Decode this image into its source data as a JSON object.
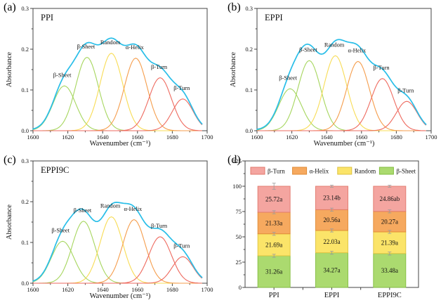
{
  "colors": {
    "axis": "#444444",
    "envelope": "#29bee8",
    "beta_sheet": "#a6d65e",
    "random": "#f8dc55",
    "alpha_helix": "#f59d4c",
    "beta_turn": "#ee6a5f",
    "bar_fill": {
      "beta_turn": "#f4a5a0",
      "alpha_helix": "#f6a95f",
      "random": "#fbe469",
      "beta_sheet": "#abda6f"
    },
    "bar_edge": {
      "beta_turn": "#e2786b",
      "alpha_helix": "#e08a33",
      "random": "#dcc23f",
      "beta_sheet": "#82bc3f"
    },
    "value_label": "#8a3220",
    "error_bar": "#9a9a9a"
  },
  "chart_data": [
    {
      "type": "line",
      "tag": "(a)",
      "title": "PPI",
      "xlabel": "Wavenumber (cm⁻¹)",
      "ylabel": "Absorbance",
      "xlim": [
        1600,
        1700
      ],
      "ylim": [
        0,
        0.3
      ],
      "xticks": [
        1600,
        1620,
        1640,
        1660,
        1680,
        1700
      ],
      "yticks": [
        0.0,
        0.1,
        0.2,
        0.3
      ],
      "envelope": "sum-of-peaks",
      "envelope_legend": "original spectrum (cyan)",
      "peaks": [
        {
          "label": "β-Sheet",
          "center": 1618,
          "height": 0.11,
          "sigma": 6.5,
          "color": "beta_sheet"
        },
        {
          "label": "β-Sheet",
          "center": 1631,
          "height": 0.18,
          "sigma": 6.5,
          "color": "beta_sheet"
        },
        {
          "label": "Random",
          "center": 1645,
          "height": 0.19,
          "sigma": 6.5,
          "color": "random"
        },
        {
          "label": "α-Helix",
          "center": 1659,
          "height": 0.178,
          "sigma": 6.5,
          "color": "alpha_helix"
        },
        {
          "label": "β-Turn",
          "center": 1673,
          "height": 0.13,
          "sigma": 6.5,
          "color": "beta_turn"
        },
        {
          "label": "β-Turn",
          "center": 1686,
          "height": 0.078,
          "sigma": 6.0,
          "color": "beta_turn"
        }
      ]
    },
    {
      "type": "line",
      "tag": "(b)",
      "title": "EPPI",
      "xlabel": "Wavenumber (cm⁻¹)",
      "ylabel": "Absorbance",
      "xlim": [
        1600,
        1700
      ],
      "ylim": [
        0,
        0.3
      ],
      "xticks": [
        1600,
        1620,
        1640,
        1660,
        1680,
        1700
      ],
      "yticks": [
        0.0,
        0.1,
        0.2,
        0.3
      ],
      "envelope": "sum-of-peaks",
      "peaks": [
        {
          "label": "β-Sheet",
          "center": 1619,
          "height": 0.103,
          "sigma": 6.5,
          "color": "beta_sheet"
        },
        {
          "label": "β-Sheet",
          "center": 1630,
          "height": 0.172,
          "sigma": 6.5,
          "color": "beta_sheet"
        },
        {
          "label": "Random",
          "center": 1645,
          "height": 0.184,
          "sigma": 6.5,
          "color": "random"
        },
        {
          "label": "α-Helix",
          "center": 1658,
          "height": 0.17,
          "sigma": 6.5,
          "color": "alpha_helix"
        },
        {
          "label": "β-Turn",
          "center": 1672,
          "height": 0.128,
          "sigma": 6.5,
          "color": "beta_turn"
        },
        {
          "label": "β-Turn",
          "center": 1686,
          "height": 0.072,
          "sigma": 6.0,
          "color": "beta_turn"
        }
      ]
    },
    {
      "type": "line",
      "tag": "(c)",
      "title": "EPPI9C",
      "xlabel": "Wavenumber (cm⁻¹)",
      "ylabel": "Absorbance",
      "xlim": [
        1600,
        1700
      ],
      "ylim": [
        0,
        0.3
      ],
      "xticks": [
        1600,
        1620,
        1640,
        1660,
        1680,
        1700
      ],
      "yticks": [
        0.0,
        0.1,
        0.2,
        0.3
      ],
      "envelope": "sum-of-peaks",
      "peaks": [
        {
          "label": "β-Sheet",
          "center": 1617,
          "height": 0.103,
          "sigma": 6.5,
          "color": "beta_sheet"
        },
        {
          "label": "β-Sheet",
          "center": 1629,
          "height": 0.152,
          "sigma": 6.5,
          "color": "beta_sheet"
        },
        {
          "label": "Random",
          "center": 1645,
          "height": 0.163,
          "sigma": 6.5,
          "color": "random"
        },
        {
          "label": "α-Helix",
          "center": 1658,
          "height": 0.156,
          "sigma": 6.5,
          "color": "alpha_helix"
        },
        {
          "label": "β-Turn",
          "center": 1673,
          "height": 0.114,
          "sigma": 6.5,
          "color": "beta_turn"
        },
        {
          "label": "β-Turn",
          "center": 1686,
          "height": 0.065,
          "sigma": 6.0,
          "color": "beta_turn"
        }
      ]
    },
    {
      "type": "bar",
      "tag": "(d)",
      "stacked": true,
      "categories": [
        "PPI",
        "EPPI",
        "EPPI9C"
      ],
      "ylim": [
        0,
        125
      ],
      "yticks": [
        0,
        25,
        50,
        75,
        100,
        125
      ],
      "legend": [
        {
          "label": "β-Turn",
          "color": "beta_turn"
        },
        {
          "label": "α-Helix",
          "color": "alpha_helix"
        },
        {
          "label": "Random",
          "color": "random"
        },
        {
          "label": "β-Sheet",
          "color": "beta_sheet"
        }
      ],
      "series": [
        {
          "name": "β-Sheet",
          "color": "beta_sheet",
          "values": [
            31.26,
            34.27,
            33.48
          ],
          "labels": [
            "31.26a",
            "34.27a",
            "33.48a"
          ]
        },
        {
          "name": "Random",
          "color": "random",
          "values": [
            21.69,
            22.03,
            21.39
          ],
          "labels": [
            "21.69a",
            "22.03a",
            "21.39a"
          ]
        },
        {
          "name": "α-Helix",
          "color": "alpha_helix",
          "values": [
            21.33,
            20.56,
            20.27
          ],
          "labels": [
            "21.33a",
            "20.56a",
            "20.27a"
          ]
        },
        {
          "name": "β-Turn",
          "color": "beta_turn",
          "values": [
            25.72,
            23.14,
            24.86
          ],
          "labels": [
            "25.72a",
            "23.14b",
            "24.86ab"
          ]
        }
      ],
      "segment_error": 1.5,
      "errors_top": [
        3,
        1,
        1
      ]
    }
  ]
}
